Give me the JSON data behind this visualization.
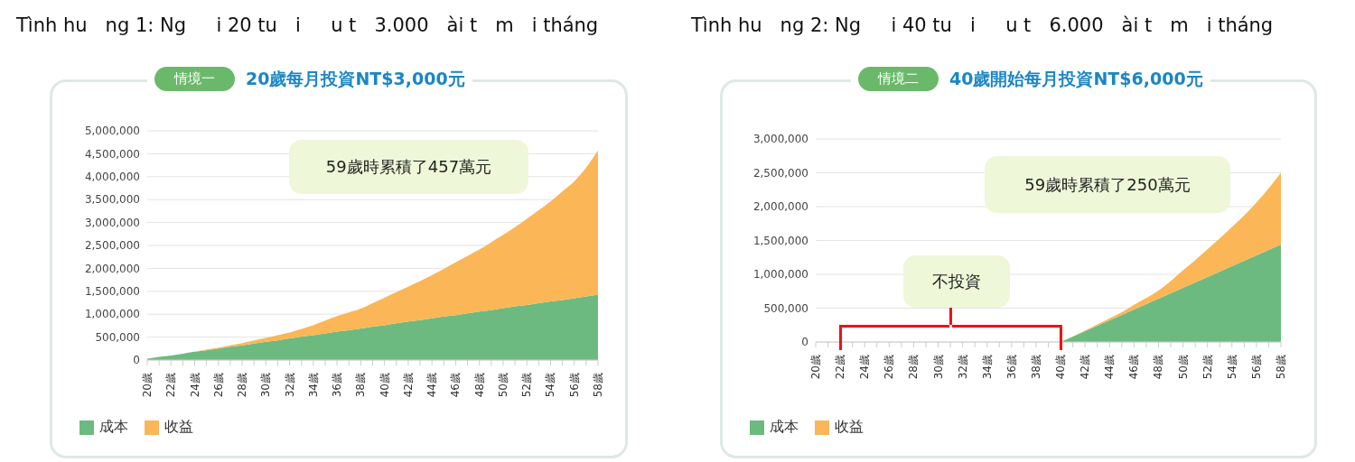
{
  "chart_data": [
    {
      "type": "area",
      "title": "Tình hu   ng 1: Ng     i 20 tu   i     u t   3.000   ài t   m   i tháng",
      "subtitle": "20歲每月投資NT$3,000元",
      "annotations": [
        "情境一",
        "59歲時累積了457萬元"
      ],
      "stacked": true,
      "grid": "y",
      "legend": "bottom left",
      "categories": [
        "20歲",
        null,
        "22歲",
        null,
        "24歲",
        null,
        "26歲",
        null,
        "28歲",
        null,
        "30歲",
        null,
        "32歲",
        null,
        "34歲",
        null,
        "36歲",
        null,
        "38歲",
        null,
        "40歲",
        null,
        "42歲",
        null,
        "44歲",
        null,
        "46歲",
        null,
        "48歲",
        null,
        "50歲",
        null,
        "52歲",
        null,
        "54歲",
        null,
        "56歲",
        null,
        "58歲"
      ],
      "ylim": [
        0,
        5000000
      ],
      "yticks": [
        {
          "value": 0,
          "label": "0"
        },
        {
          "value": 500000,
          "label": "500,000"
        },
        {
          "value": 1000000,
          "label": "1,000,000"
        },
        {
          "value": 1500000,
          "label": "1,500,000"
        },
        {
          "value": 2000000,
          "label": "2,000,000"
        },
        {
          "value": 2500000,
          "label": "2,500,000"
        },
        {
          "value": 3000000,
          "label": "3,000,000"
        },
        {
          "value": 3500000,
          "label": "3,500,000"
        },
        {
          "value": 4000000,
          "label": "4,000,000"
        },
        {
          "value": 4500000,
          "label": "4,500,000"
        },
        {
          "value": 5000000,
          "label": "5,000,000"
        }
      ],
      "series": [
        {
          "name": "成本",
          "color": "#6dba80",
          "values": [
            30000,
            70000,
            100000,
            140000,
            180000,
            210000,
            250000,
            290000,
            320000,
            360000,
            400000,
            430000,
            470000,
            510000,
            540000,
            580000,
            620000,
            650000,
            690000,
            730000,
            760000,
            800000,
            840000,
            870000,
            910000,
            950000,
            980000,
            1020000,
            1060000,
            1090000,
            1130000,
            1170000,
            1200000,
            1240000,
            1280000,
            1310000,
            1350000,
            1390000,
            1420000
          ]
        },
        {
          "name": "收益",
          "color": "#fbb657",
          "values": [
            0,
            0,
            0,
            0,
            0,
            20000,
            20000,
            30000,
            50000,
            70000,
            80000,
            110000,
            130000,
            170000,
            220000,
            280000,
            340000,
            390000,
            430000,
            510000,
            600000,
            680000,
            760000,
            850000,
            940000,
            1040000,
            1150000,
            1250000,
            1350000,
            1480000,
            1600000,
            1730000,
            1880000,
            2030000,
            2180000,
            2370000,
            2550000,
            2810000,
            3150000
          ]
        }
      ]
    },
    {
      "type": "area",
      "title": "Tình hu   ng 2: Ng     i 40 tu   i     u t   6.000   ài t   m   i tháng",
      "subtitle": "40歲開始每月投資NT$6,000元",
      "annotations": [
        "情境二",
        "不投資",
        "59歲時累積了250萬元"
      ],
      "stacked": true,
      "grid": "y",
      "legend": "bottom left",
      "categories": [
        "20歲",
        null,
        "22歲",
        null,
        "24歲",
        null,
        "26歲",
        null,
        "28歲",
        null,
        "30歲",
        null,
        "32歲",
        null,
        "34歲",
        null,
        "36歲",
        null,
        "38歲",
        null,
        "40歲",
        null,
        "42歲",
        null,
        "44歲",
        null,
        "46歲",
        null,
        "48歲",
        null,
        "50歲",
        null,
        "52歲",
        null,
        "54歲",
        null,
        "56歲",
        null,
        "58歲"
      ],
      "ylim": [
        0,
        3000000
      ],
      "yticks": [
        {
          "value": 0,
          "label": "0"
        },
        {
          "value": 500000,
          "label": "500,000"
        },
        {
          "value": 1000000,
          "label": "1,000,000"
        },
        {
          "value": 1500000,
          "label": "1,500,000"
        },
        {
          "value": 2000000,
          "label": "2,000,000"
        },
        {
          "value": 2500000,
          "label": "2,500,000"
        },
        {
          "value": 3000000,
          "label": "3,000,000"
        }
      ],
      "series": [
        {
          "name": "成本",
          "color": "#6dba80",
          "values": [
            null,
            null,
            null,
            null,
            null,
            null,
            null,
            null,
            null,
            null,
            null,
            null,
            null,
            null,
            null,
            null,
            null,
            null,
            null,
            null,
            0,
            80000,
            160000,
            240000,
            320000,
            400000,
            480000,
            560000,
            640000,
            720000,
            800000,
            880000,
            960000,
            1040000,
            1120000,
            1200000,
            1280000,
            1360000,
            1440000
          ]
        },
        {
          "name": "收益",
          "color": "#fbb657",
          "values": [
            null,
            null,
            null,
            null,
            null,
            null,
            null,
            null,
            null,
            null,
            null,
            null,
            null,
            null,
            null,
            null,
            null,
            null,
            null,
            null,
            0,
            0,
            10000,
            20000,
            30000,
            40000,
            70000,
            90000,
            120000,
            180000,
            260000,
            330000,
            410000,
            490000,
            580000,
            670000,
            780000,
            910000,
            1060000
          ]
        }
      ]
    }
  ]
}
